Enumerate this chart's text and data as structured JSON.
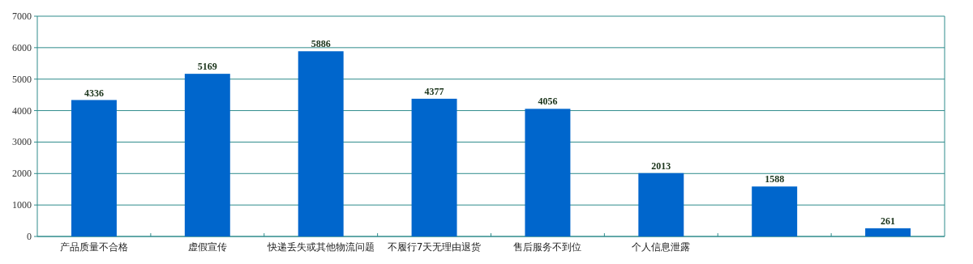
{
  "chart_data": {
    "type": "bar",
    "categories": [
      "产品质量不合格",
      "虚假宣传",
      "快递丢失或其他物流问题",
      "不履行7天无理由退货",
      "售后服务不到位",
      "个人信息泄露",
      null,
      null
    ],
    "values": [
      4336,
      5169,
      5886,
      4377,
      4056,
      2013,
      1588,
      261
    ],
    "color": "#0066cc",
    "ylim": [
      0,
      7000
    ],
    "yticks": [
      0,
      1000,
      2000,
      3000,
      4000,
      5000,
      6000,
      7000
    ],
    "grid": "y",
    "data_labels": true
  }
}
